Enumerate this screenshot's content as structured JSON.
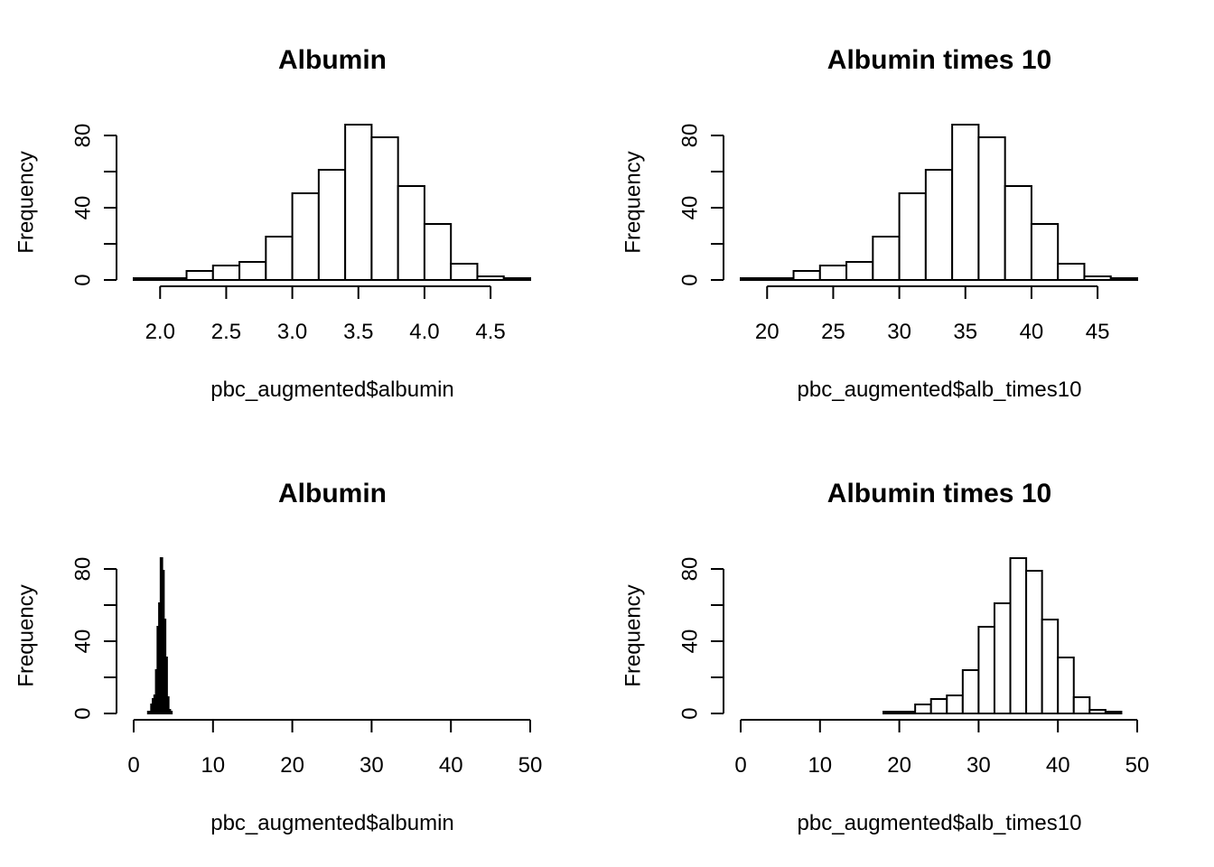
{
  "chart_data": [
    {
      "type": "bar",
      "title": "Albumin",
      "xlabel": "pbc_augmented$albumin",
      "ylabel": "Frequency",
      "bin_edges": [
        1.8,
        2.0,
        2.2,
        2.4,
        2.6,
        2.8,
        3.0,
        3.2,
        3.4,
        3.6,
        3.8,
        4.0,
        4.2,
        4.4,
        4.6,
        4.8
      ],
      "values": [
        1,
        1,
        5,
        8,
        10,
        24,
        48,
        61,
        86,
        79,
        52,
        31,
        9,
        2,
        1
      ],
      "xlim": [
        1.8,
        4.8
      ],
      "ylim": [
        0,
        86
      ],
      "xticks": [
        2.0,
        2.5,
        3.0,
        3.5,
        4.0,
        4.5
      ],
      "xtick_labels": [
        "2.0",
        "2.5",
        "3.0",
        "3.5",
        "4.0",
        "4.5"
      ],
      "yticks": [
        0,
        20,
        40,
        60,
        80
      ],
      "ytick_labels": [
        "0",
        "",
        "40",
        "",
        "80"
      ],
      "grid": false
    },
    {
      "type": "bar",
      "title": "Albumin times 10",
      "xlabel": "pbc_augmented$alb_times10",
      "ylabel": "Frequency",
      "bin_edges": [
        18,
        20,
        22,
        24,
        26,
        28,
        30,
        32,
        34,
        36,
        38,
        40,
        42,
        44,
        46,
        48
      ],
      "values": [
        1,
        1,
        5,
        8,
        10,
        24,
        48,
        61,
        86,
        79,
        52,
        31,
        9,
        2,
        1
      ],
      "xlim": [
        18,
        48
      ],
      "ylim": [
        0,
        86
      ],
      "xticks": [
        20,
        25,
        30,
        35,
        40,
        45
      ],
      "xtick_labels": [
        "20",
        "25",
        "30",
        "35",
        "40",
        "45"
      ],
      "yticks": [
        0,
        20,
        40,
        60,
        80
      ],
      "ytick_labels": [
        "0",
        "",
        "40",
        "",
        "80"
      ],
      "grid": false
    },
    {
      "type": "bar",
      "title": "Albumin",
      "xlabel": "pbc_augmented$albumin",
      "ylabel": "Frequency",
      "bin_edges": [
        1.8,
        2.0,
        2.2,
        2.4,
        2.6,
        2.8,
        3.0,
        3.2,
        3.4,
        3.6,
        3.8,
        4.0,
        4.2,
        4.4,
        4.6,
        4.8
      ],
      "values": [
        1,
        1,
        5,
        8,
        10,
        24,
        48,
        61,
        86,
        79,
        52,
        31,
        9,
        2,
        1
      ],
      "xlim": [
        0,
        50
      ],
      "ylim": [
        0,
        86
      ],
      "xticks": [
        0,
        10,
        20,
        30,
        40,
        50
      ],
      "xtick_labels": [
        "0",
        "10",
        "20",
        "30",
        "40",
        "50"
      ],
      "yticks": [
        0,
        20,
        40,
        60,
        80
      ],
      "ytick_labels": [
        "0",
        "",
        "40",
        "",
        "80"
      ],
      "grid": false
    },
    {
      "type": "bar",
      "title": "Albumin times 10",
      "xlabel": "pbc_augmented$alb_times10",
      "ylabel": "Frequency",
      "bin_edges": [
        18,
        20,
        22,
        24,
        26,
        28,
        30,
        32,
        34,
        36,
        38,
        40,
        42,
        44,
        46,
        48
      ],
      "values": [
        1,
        1,
        5,
        8,
        10,
        24,
        48,
        61,
        86,
        79,
        52,
        31,
        9,
        2,
        1
      ],
      "xlim": [
        0,
        50
      ],
      "ylim": [
        0,
        86
      ],
      "xticks": [
        0,
        10,
        20,
        30,
        40,
        50
      ],
      "xtick_labels": [
        "0",
        "10",
        "20",
        "30",
        "40",
        "50"
      ],
      "yticks": [
        0,
        20,
        40,
        60,
        80
      ],
      "ytick_labels": [
        "0",
        "",
        "40",
        "",
        "80"
      ],
      "grid": false
    }
  ]
}
